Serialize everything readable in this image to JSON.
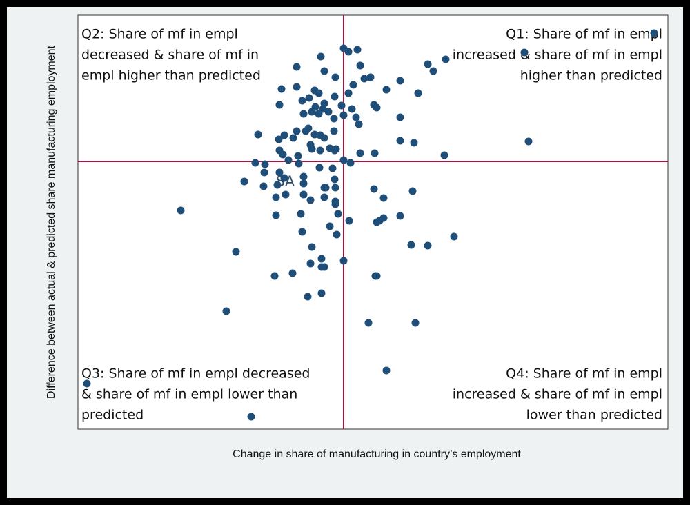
{
  "chart_data": {
    "type": "scatter",
    "x_label": "Change in share of manufacturing in country’s employment",
    "y_label": "Difference between actual & predicted share manufacturing employment",
    "color": "#1f4e79",
    "line_color": "#a0163c",
    "xline": 0,
    "yline": 0,
    "xlim": [
      -385,
      470
    ],
    "ylim": [
      -388,
      212
    ],
    "quadrant_labels": [
      {
        "lines": [
          "Q1: Share of mf in empl",
          "increased & share of mf in empl",
          "higher than predicted"
        ],
        "corner": "upper right"
      },
      {
        "lines": [
          "Q2: Share of mf in empl",
          "decreased & share of mf in",
          "empl higher than predicted"
        ],
        "corner": "upper left"
      },
      {
        "lines": [
          "Q3: Share of mf in empl decreased",
          "& share of mf in empl lower than",
          "predicted"
        ],
        "corner": "lower left"
      },
      {
        "lines": [
          "Q4: Share of mf in empl",
          "increased & share of mf in empl",
          "lower than predicted"
        ],
        "corner": "lower right"
      }
    ],
    "annotations": [
      "SA"
    ],
    "x": [
      450,
      262,
      148,
      122,
      130,
      268,
      146,
      0,
      7,
      20,
      -33,
      -28,
      -68,
      24,
      39,
      30,
      14,
      -12,
      -90,
      -68,
      -42,
      -36,
      -50,
      -60,
      -28,
      -13,
      7,
      82,
      62,
      108,
      44,
      48,
      -30,
      -41,
      -46,
      -22,
      -3,
      12,
      -58,
      -93,
      -36,
      18,
      22,
      -14,
      0,
      82,
      -51,
      -55,
      -68,
      -86,
      -94,
      -124,
      -73,
      -42,
      -28,
      -14,
      -34,
      82,
      102,
      -46,
      -34,
      -20,
      -13,
      -11,
      24,
      45,
      -93,
      -88,
      -66,
      -80,
      -48,
      -128,
      -114,
      -65,
      -35,
      -16,
      0,
      10,
      -115,
      -93,
      -86,
      -58,
      -26,
      -144,
      -116,
      -96,
      -58,
      -28,
      -12,
      -13,
      -98,
      -84,
      -58,
      -48,
      -28,
      -12,
      -12,
      44,
      58,
      100,
      -236,
      -98,
      -8,
      -62,
      8,
      -20,
      -60,
      -10,
      52,
      58,
      82,
      48,
      160,
      98,
      122,
      -46,
      -156,
      -32,
      -48,
      -32,
      -28,
      0,
      -74,
      -100,
      46,
      48,
      -52,
      -32,
      -170,
      36,
      104,
      62,
      -372,
      -134
    ],
    "values": [
      186,
      158,
      148,
      141,
      131,
      29,
      9,
      164,
      159,
      162,
      152,
      131,
      137,
      139,
      122,
      120,
      111,
      122,
      105,
      108,
      103,
      99,
      92,
      88,
      84,
      94,
      99,
      117,
      104,
      99,
      82,
      78,
      76,
      79,
      72,
      72,
      81,
      76,
      69,
      82,
      69,
      64,
      54,
      62,
      67,
      64,
      48,
      44,
      44,
      38,
      32,
      39,
      34,
      39,
      34,
      44,
      38,
      30,
      27,
      18,
      16,
      19,
      16,
      18,
      12,
      12,
      16,
      10,
      8,
      2,
      24,
      -2,
      -4,
      -3,
      -9,
      -10,
      2,
      -2,
      -16,
      -16,
      -24,
      -22,
      -38,
      -29,
      -36,
      -34,
      -32,
      -38,
      -38,
      -26,
      -52,
      -48,
      -48,
      -56,
      -52,
      -58,
      -62,
      -40,
      -53,
      -43,
      -71,
      -78,
      -76,
      -76,
      -86,
      -94,
      -102,
      -106,
      -86,
      -82,
      -79,
      -88,
      -109,
      -121,
      -122,
      -124,
      -131,
      -141,
      -148,
      -153,
      -153,
      -144,
      -162,
      -166,
      -166,
      -166,
      -196,
      -191,
      -217,
      -234,
      -234,
      -303,
      -322,
      -370
    ]
  }
}
